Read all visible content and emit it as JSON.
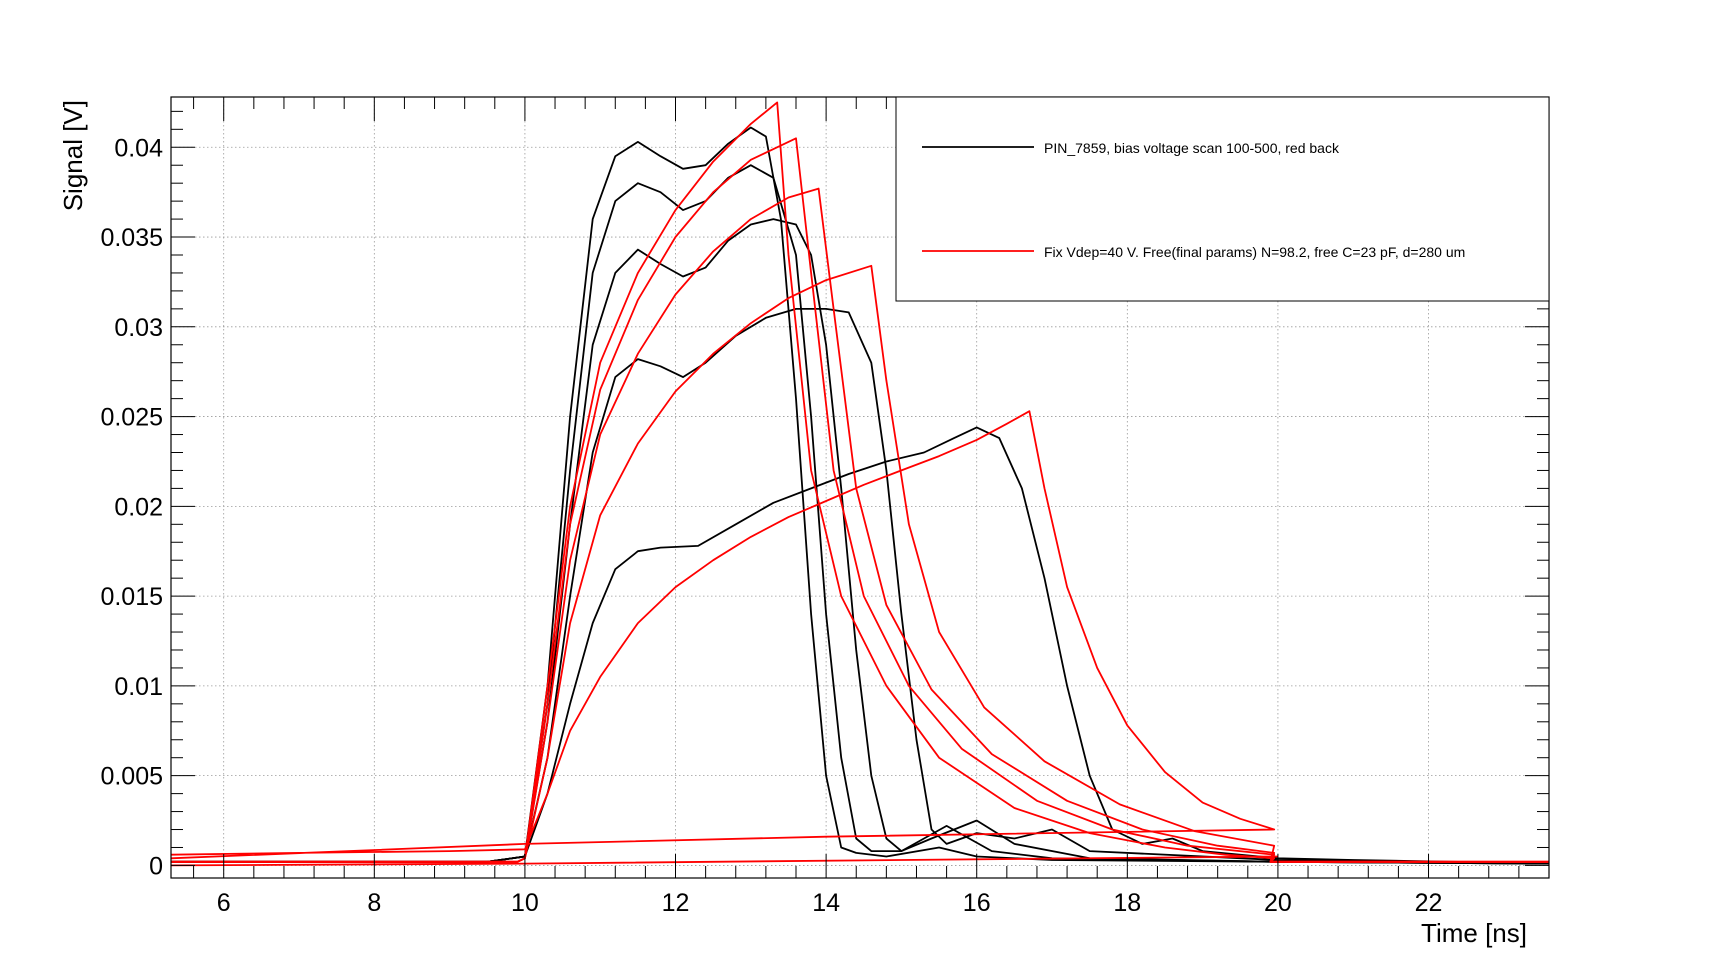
{
  "chart_data": {
    "type": "line",
    "title": "",
    "xlabel": "Time [ns]",
    "ylabel": "Signal [V]",
    "xlim": [
      5.3,
      23.6
    ],
    "ylim": [
      -0.0007,
      0.0428
    ],
    "x_ticks": [
      6,
      8,
      10,
      12,
      14,
      16,
      18,
      20,
      22
    ],
    "x_tick_labels": [
      "6",
      "8",
      "10",
      "12",
      "14",
      "16",
      "18",
      "20",
      "22"
    ],
    "y_ticks": [
      0,
      0.005,
      0.01,
      0.015,
      0.02,
      0.025,
      0.03,
      0.035,
      0.04
    ],
    "y_tick_labels": [
      "0",
      "0.005",
      "0.01",
      "0.015",
      "0.02",
      "0.025",
      "0.03",
      "0.035",
      "0.04"
    ],
    "grid": true,
    "legend_placement": "top-right",
    "colors": {
      "measured": "#000000",
      "fit": "#ff0000"
    },
    "legend": [
      {
        "label": "PIN_7859, bias voltage scan 100-500, red back",
        "color": "#000000"
      },
      {
        "label": "Fix Vdep=40 V. Free(final params) N=98.2, free C=23 pF, d=280 um",
        "color": "#ff0000"
      }
    ],
    "series": [
      {
        "group": "measured",
        "color": "#000000",
        "points": [
          [
            5.3,
            0.0002
          ],
          [
            9.5,
            0.0002
          ],
          [
            10.0,
            0.0005
          ],
          [
            10.3,
            0.01
          ],
          [
            10.6,
            0.025
          ],
          [
            10.9,
            0.036
          ],
          [
            11.2,
            0.0395
          ],
          [
            11.5,
            0.0403
          ],
          [
            11.8,
            0.0395
          ],
          [
            12.1,
            0.0388
          ],
          [
            12.4,
            0.039
          ],
          [
            12.7,
            0.0402
          ],
          [
            13.0,
            0.0411
          ],
          [
            13.2,
            0.0406
          ],
          [
            13.4,
            0.036
          ],
          [
            13.6,
            0.026
          ],
          [
            13.8,
            0.014
          ],
          [
            14.0,
            0.005
          ],
          [
            14.2,
            0.001
          ],
          [
            14.4,
            0.0007
          ],
          [
            14.8,
            0.0005
          ],
          [
            15.5,
            0.001
          ],
          [
            16.0,
            0.0005
          ],
          [
            17.0,
            0.0003
          ],
          [
            20.0,
            0.0002
          ],
          [
            23.6,
            0.0001
          ]
        ]
      },
      {
        "group": "measured",
        "color": "#000000",
        "points": [
          [
            5.3,
            0.0002
          ],
          [
            9.5,
            0.0002
          ],
          [
            10.0,
            0.0005
          ],
          [
            10.3,
            0.009
          ],
          [
            10.6,
            0.022
          ],
          [
            10.9,
            0.033
          ],
          [
            11.2,
            0.037
          ],
          [
            11.5,
            0.038
          ],
          [
            11.8,
            0.0375
          ],
          [
            12.1,
            0.0365
          ],
          [
            12.4,
            0.037
          ],
          [
            12.7,
            0.0383
          ],
          [
            13.0,
            0.039
          ],
          [
            13.3,
            0.0383
          ],
          [
            13.6,
            0.034
          ],
          [
            13.8,
            0.025
          ],
          [
            14.0,
            0.014
          ],
          [
            14.2,
            0.006
          ],
          [
            14.4,
            0.0015
          ],
          [
            14.6,
            0.0008
          ],
          [
            15.0,
            0.0008
          ],
          [
            15.6,
            0.0022
          ],
          [
            16.2,
            0.0008
          ],
          [
            17.0,
            0.0004
          ],
          [
            20.0,
            0.0002
          ],
          [
            23.6,
            0.0001
          ]
        ]
      },
      {
        "group": "measured",
        "color": "#000000",
        "points": [
          [
            5.3,
            0.0002
          ],
          [
            9.5,
            0.0002
          ],
          [
            10.0,
            0.0005
          ],
          [
            10.3,
            0.008
          ],
          [
            10.6,
            0.019
          ],
          [
            10.9,
            0.029
          ],
          [
            11.2,
            0.033
          ],
          [
            11.5,
            0.0343
          ],
          [
            11.8,
            0.0335
          ],
          [
            12.1,
            0.0328
          ],
          [
            12.4,
            0.0333
          ],
          [
            12.7,
            0.0348
          ],
          [
            13.0,
            0.0357
          ],
          [
            13.3,
            0.036
          ],
          [
            13.6,
            0.0357
          ],
          [
            13.8,
            0.034
          ],
          [
            14.0,
            0.029
          ],
          [
            14.2,
            0.021
          ],
          [
            14.4,
            0.012
          ],
          [
            14.6,
            0.005
          ],
          [
            14.8,
            0.0015
          ],
          [
            15.0,
            0.0008
          ],
          [
            15.4,
            0.0015
          ],
          [
            16.0,
            0.0025
          ],
          [
            16.5,
            0.0012
          ],
          [
            17.5,
            0.0004
          ],
          [
            20.0,
            0.0002
          ],
          [
            23.6,
            0.0001
          ]
        ]
      },
      {
        "group": "measured",
        "color": "#000000",
        "points": [
          [
            5.3,
            0.0002
          ],
          [
            9.5,
            0.0002
          ],
          [
            10.0,
            0.0005
          ],
          [
            10.3,
            0.006
          ],
          [
            10.6,
            0.015
          ],
          [
            10.9,
            0.023
          ],
          [
            11.2,
            0.0272
          ],
          [
            11.5,
            0.0282
          ],
          [
            11.8,
            0.0278
          ],
          [
            12.1,
            0.0272
          ],
          [
            12.4,
            0.028
          ],
          [
            12.8,
            0.0295
          ],
          [
            13.2,
            0.0305
          ],
          [
            13.6,
            0.031
          ],
          [
            14.0,
            0.031
          ],
          [
            14.3,
            0.0308
          ],
          [
            14.6,
            0.028
          ],
          [
            14.8,
            0.022
          ],
          [
            15.0,
            0.014
          ],
          [
            15.2,
            0.007
          ],
          [
            15.4,
            0.002
          ],
          [
            15.6,
            0.0012
          ],
          [
            16.0,
            0.0018
          ],
          [
            16.5,
            0.0015
          ],
          [
            17.0,
            0.002
          ],
          [
            17.5,
            0.0008
          ],
          [
            20.0,
            0.0003
          ],
          [
            23.6,
            0.0001
          ]
        ]
      },
      {
        "group": "measured",
        "color": "#000000",
        "points": [
          [
            5.3,
            0.0002
          ],
          [
            9.5,
            0.0002
          ],
          [
            10.0,
            0.0005
          ],
          [
            10.3,
            0.004
          ],
          [
            10.6,
            0.009
          ],
          [
            10.9,
            0.0135
          ],
          [
            11.2,
            0.0165
          ],
          [
            11.5,
            0.0175
          ],
          [
            11.8,
            0.0177
          ],
          [
            12.3,
            0.0178
          ],
          [
            12.8,
            0.019
          ],
          [
            13.3,
            0.0202
          ],
          [
            13.8,
            0.021
          ],
          [
            14.3,
            0.0218
          ],
          [
            14.8,
            0.0225
          ],
          [
            15.3,
            0.023
          ],
          [
            15.7,
            0.0238
          ],
          [
            16.0,
            0.0244
          ],
          [
            16.3,
            0.0238
          ],
          [
            16.6,
            0.021
          ],
          [
            16.9,
            0.016
          ],
          [
            17.2,
            0.01
          ],
          [
            17.5,
            0.005
          ],
          [
            17.8,
            0.002
          ],
          [
            18.2,
            0.0012
          ],
          [
            18.6,
            0.0015
          ],
          [
            19.0,
            0.0008
          ],
          [
            20.0,
            0.0004
          ],
          [
            21.0,
            0.0003
          ],
          [
            23.6,
            0.0001
          ]
        ]
      },
      {
        "group": "fit",
        "color": "#ff0000",
        "points": [
          [
            5.3,
            0.0002
          ],
          [
            9.9,
            0.0002
          ],
          [
            10.0,
            0.0004
          ],
          [
            10.3,
            0.01
          ],
          [
            10.6,
            0.02
          ],
          [
            11.0,
            0.028
          ],
          [
            11.5,
            0.033
          ],
          [
            12.0,
            0.0365
          ],
          [
            12.5,
            0.0392
          ],
          [
            13.0,
            0.0413
          ],
          [
            13.35,
            0.0425
          ],
          [
            13.5,
            0.034
          ],
          [
            13.8,
            0.022
          ],
          [
            14.2,
            0.015
          ],
          [
            14.8,
            0.01
          ],
          [
            15.5,
            0.006
          ],
          [
            16.5,
            0.0032
          ],
          [
            17.5,
            0.0018
          ],
          [
            18.5,
            0.001
          ],
          [
            19.3,
            0.0006
          ],
          [
            19.95,
            0.0004
          ],
          [
            19.9,
            0.0002
          ],
          [
            23.6,
            0.0002
          ]
        ]
      },
      {
        "group": "fit",
        "color": "#ff0000",
        "points": [
          [
            5.3,
            0.0002
          ],
          [
            9.9,
            0.0002
          ],
          [
            10.0,
            0.0004
          ],
          [
            10.3,
            0.009
          ],
          [
            10.6,
            0.019
          ],
          [
            11.0,
            0.0265
          ],
          [
            11.5,
            0.0315
          ],
          [
            12.0,
            0.035
          ],
          [
            12.5,
            0.0375
          ],
          [
            13.0,
            0.0393
          ],
          [
            13.6,
            0.0405
          ],
          [
            13.8,
            0.033
          ],
          [
            14.1,
            0.022
          ],
          [
            14.5,
            0.015
          ],
          [
            15.1,
            0.01
          ],
          [
            15.8,
            0.0065
          ],
          [
            16.8,
            0.0036
          ],
          [
            17.8,
            0.002
          ],
          [
            18.8,
            0.0011
          ],
          [
            19.95,
            0.0006
          ],
          [
            19.9,
            0.0002
          ],
          [
            23.6,
            0.0002
          ]
        ]
      },
      {
        "group": "fit",
        "color": "#ff0000",
        "points": [
          [
            5.3,
            0.0002
          ],
          [
            9.9,
            0.0002
          ],
          [
            10.0,
            0.0004
          ],
          [
            10.3,
            0.008
          ],
          [
            10.6,
            0.017
          ],
          [
            11.0,
            0.024
          ],
          [
            11.5,
            0.0285
          ],
          [
            12.0,
            0.0318
          ],
          [
            12.5,
            0.0342
          ],
          [
            13.0,
            0.036
          ],
          [
            13.5,
            0.0372
          ],
          [
            13.9,
            0.0377
          ],
          [
            14.1,
            0.031
          ],
          [
            14.4,
            0.021
          ],
          [
            14.8,
            0.0145
          ],
          [
            15.4,
            0.0098
          ],
          [
            16.2,
            0.0062
          ],
          [
            17.2,
            0.0036
          ],
          [
            18.2,
            0.002
          ],
          [
            19.2,
            0.0011
          ],
          [
            19.95,
            0.0007
          ],
          [
            19.9,
            0.0002
          ],
          [
            23.6,
            0.0002
          ]
        ]
      },
      {
        "group": "fit",
        "color": "#ff0000",
        "points": [
          [
            5.3,
            0.0002
          ],
          [
            9.9,
            0.0002
          ],
          [
            10.0,
            0.0004
          ],
          [
            10.3,
            0.006
          ],
          [
            10.6,
            0.0135
          ],
          [
            11.0,
            0.0195
          ],
          [
            11.5,
            0.0235
          ],
          [
            12.0,
            0.0264
          ],
          [
            12.5,
            0.0285
          ],
          [
            13.0,
            0.0302
          ],
          [
            13.5,
            0.0316
          ],
          [
            14.0,
            0.0326
          ],
          [
            14.6,
            0.0334
          ],
          [
            14.8,
            0.027
          ],
          [
            15.1,
            0.019
          ],
          [
            15.5,
            0.013
          ],
          [
            16.1,
            0.0088
          ],
          [
            16.9,
            0.0058
          ],
          [
            17.9,
            0.0034
          ],
          [
            18.9,
            0.0019
          ],
          [
            19.95,
            0.0011
          ],
          [
            19.9,
            0.0002
          ],
          [
            23.6,
            0.0002
          ]
        ]
      },
      {
        "group": "fit",
        "color": "#ff0000",
        "points": [
          [
            5.3,
            0.0006
          ],
          [
            7.0,
            0.0007
          ],
          [
            9.0,
            0.0008
          ],
          [
            10.0,
            0.0009
          ],
          [
            10.3,
            0.004
          ],
          [
            10.6,
            0.0075
          ],
          [
            11.0,
            0.0105
          ],
          [
            11.5,
            0.0135
          ],
          [
            12.0,
            0.0155
          ],
          [
            12.5,
            0.017
          ],
          [
            13.0,
            0.0183
          ],
          [
            13.5,
            0.0194
          ],
          [
            14.0,
            0.0203
          ],
          [
            14.5,
            0.0212
          ],
          [
            15.0,
            0.022
          ],
          [
            15.5,
            0.0228
          ],
          [
            16.0,
            0.0237
          ],
          [
            16.4,
            0.0246
          ],
          [
            16.7,
            0.0253
          ],
          [
            16.9,
            0.021
          ],
          [
            17.2,
            0.0155
          ],
          [
            17.6,
            0.011
          ],
          [
            18.0,
            0.0078
          ],
          [
            18.5,
            0.0052
          ],
          [
            19.0,
            0.0035
          ],
          [
            19.5,
            0.0026
          ],
          [
            19.95,
            0.002
          ],
          [
            14.0,
            0.0016
          ],
          [
            10.0,
            0.0012
          ],
          [
            5.3,
            0.0004
          ]
        ]
      },
      {
        "group": "fit",
        "color": "#ff0000",
        "points": [
          [
            5.3,
            0.0
          ],
          [
            10.0,
            0.0001
          ],
          [
            15.0,
            0.0003
          ],
          [
            20.0,
            0.0005
          ]
        ]
      }
    ]
  }
}
